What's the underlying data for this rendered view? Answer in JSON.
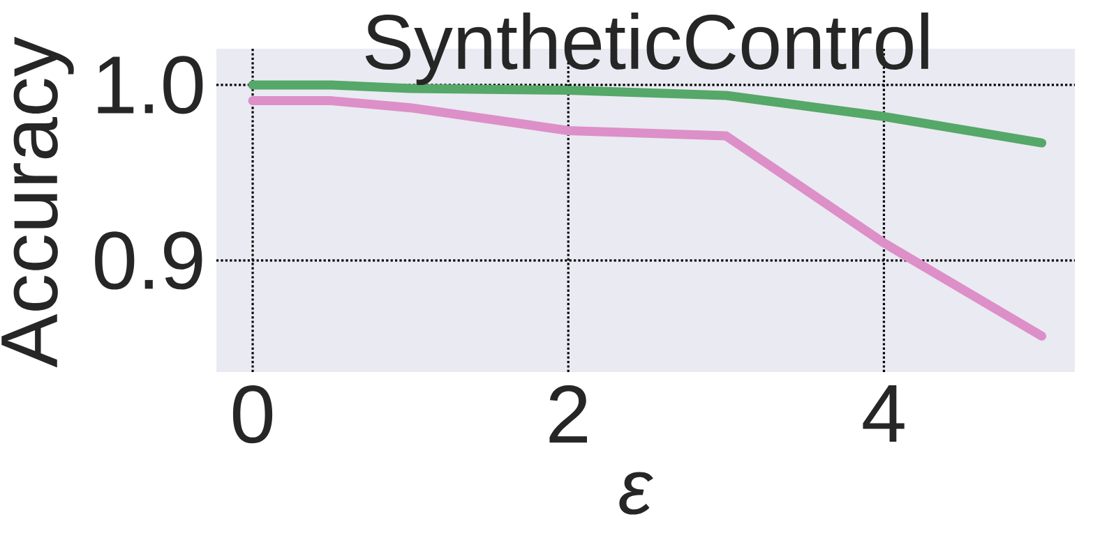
{
  "chart_data": {
    "type": "line",
    "title": "SyntheticControl",
    "xlabel": "ε",
    "ylabel": "Accuracy",
    "xlim": [
      -0.23,
      5.21
    ],
    "ylim": [
      0.8365,
      1.0206
    ],
    "xticks": [
      0,
      2,
      4
    ],
    "yticks": [
      {
        "value": 0.9,
        "label": "0.9"
      },
      {
        "value": 1.0,
        "label": "1.0"
      }
    ],
    "grid": true,
    "line_style": "solid",
    "marker": "none",
    "series": [
      {
        "color": "#55a868",
        "x": [
          0,
          0.5,
          1,
          2,
          3,
          4,
          5
        ],
        "values": [
          1.0,
          1.0,
          0.998,
          0.997,
          0.994,
          0.982,
          0.967
        ]
      },
      {
        "color": "#dd8fc8",
        "x": [
          0,
          0.5,
          1,
          2,
          3,
          4,
          5
        ],
        "values": [
          0.991,
          0.991,
          0.987,
          0.974,
          0.971,
          0.91,
          0.857
        ]
      }
    ]
  }
}
